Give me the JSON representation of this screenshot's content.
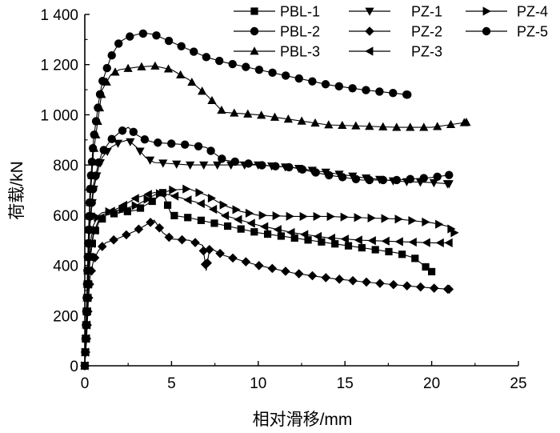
{
  "chart_data": {
    "type": "line",
    "title": "",
    "xlabel": "相对滑移/mm",
    "ylabel": "荷载/kN",
    "xlim": [
      0,
      25
    ],
    "ylim": [
      0,
      1400
    ],
    "xticks": [
      0,
      5,
      10,
      15,
      20,
      25
    ],
    "xtick_labels": [
      "0",
      "5",
      "10",
      "15",
      "20",
      "25"
    ],
    "yticks": [
      0,
      200,
      400,
      600,
      800,
      1000,
      1200,
      1400
    ],
    "ytick_labels": [
      "0",
      "200",
      "400",
      "600",
      "800",
      "1 000",
      "1 200",
      "1 400"
    ],
    "grid": false,
    "legend_position": "top-right",
    "series": [
      {
        "name": "PBL-1",
        "marker": "square",
        "points": [
          [
            0,
            0
          ],
          [
            0.1,
            120
          ],
          [
            0.2,
            300
          ],
          [
            0.3,
            420
          ],
          [
            0.5,
            520
          ],
          [
            0.8,
            570
          ],
          [
            1.2,
            600
          ],
          [
            2,
            610
          ],
          [
            3,
            620
          ],
          [
            3.5,
            640
          ],
          [
            4,
            660
          ],
          [
            4.5,
            690
          ],
          [
            5,
            600
          ],
          [
            6,
            590
          ],
          [
            8,
            560
          ],
          [
            10,
            530
          ],
          [
            12,
            510
          ],
          [
            14,
            490
          ],
          [
            16,
            470
          ],
          [
            18,
            450
          ],
          [
            19,
            430
          ],
          [
            20,
            375
          ]
        ]
      },
      {
        "name": "PBL-2",
        "marker": "circle",
        "points": [
          [
            0,
            0
          ],
          [
            0.1,
            250
          ],
          [
            0.2,
            500
          ],
          [
            0.3,
            700
          ],
          [
            0.5,
            900
          ],
          [
            0.8,
            1050
          ],
          [
            1,
            1130
          ],
          [
            1.5,
            1230
          ],
          [
            2,
            1290
          ],
          [
            2.5,
            1310
          ],
          [
            3,
            1320
          ],
          [
            3.5,
            1325
          ],
          [
            4,
            1320
          ],
          [
            5,
            1290
          ],
          [
            6,
            1260
          ],
          [
            7,
            1230
          ],
          [
            8,
            1210
          ],
          [
            10,
            1180
          ],
          [
            12,
            1150
          ],
          [
            14,
            1120
          ],
          [
            16,
            1100
          ],
          [
            18,
            1085
          ],
          [
            18.6,
            1080
          ]
        ]
      },
      {
        "name": "PBL-3",
        "marker": "triangle-up",
        "points": [
          [
            0,
            0
          ],
          [
            0.1,
            200
          ],
          [
            0.2,
            450
          ],
          [
            0.3,
            650
          ],
          [
            0.5,
            850
          ],
          [
            0.8,
            1000
          ],
          [
            1,
            1100
          ],
          [
            1.5,
            1160
          ],
          [
            2,
            1180
          ],
          [
            3,
            1190
          ],
          [
            4,
            1195
          ],
          [
            5,
            1180
          ],
          [
            6,
            1140
          ],
          [
            7,
            1080
          ],
          [
            8,
            1010
          ],
          [
            10,
            1000
          ],
          [
            12,
            980
          ],
          [
            14,
            960
          ],
          [
            16,
            955
          ],
          [
            18,
            950
          ],
          [
            20,
            950
          ],
          [
            21,
            960
          ],
          [
            22,
            970
          ]
        ]
      },
      {
        "name": "PZ-1",
        "marker": "triangle-down",
        "points": [
          [
            0,
            0
          ],
          [
            0.1,
            200
          ],
          [
            0.2,
            400
          ],
          [
            0.3,
            560
          ],
          [
            0.5,
            700
          ],
          [
            0.8,
            790
          ],
          [
            1,
            830
          ],
          [
            1.5,
            870
          ],
          [
            2,
            890
          ],
          [
            2.5,
            900
          ],
          [
            3,
            870
          ],
          [
            3.5,
            830
          ],
          [
            4,
            810
          ],
          [
            6,
            800
          ],
          [
            8,
            800
          ],
          [
            10,
            800
          ],
          [
            12,
            790
          ],
          [
            14,
            770
          ],
          [
            16,
            750
          ],
          [
            18,
            735
          ],
          [
            20,
            730
          ],
          [
            21,
            725
          ]
        ]
      },
      {
        "name": "PZ-2",
        "marker": "diamond",
        "points": [
          [
            0,
            0
          ],
          [
            0.1,
            100
          ],
          [
            0.2,
            250
          ],
          [
            0.3,
            350
          ],
          [
            0.5,
            420
          ],
          [
            0.8,
            460
          ],
          [
            1.2,
            490
          ],
          [
            2,
            510
          ],
          [
            3,
            540
          ],
          [
            3.5,
            560
          ],
          [
            4,
            580
          ],
          [
            4.5,
            530
          ],
          [
            5,
            505
          ],
          [
            6,
            500
          ],
          [
            6.8,
            480
          ],
          [
            7,
            380
          ],
          [
            7.2,
            470
          ],
          [
            8,
            440
          ],
          [
            10,
            400
          ],
          [
            12,
            370
          ],
          [
            14,
            350
          ],
          [
            16,
            335
          ],
          [
            18,
            322
          ],
          [
            20,
            310
          ],
          [
            21,
            305
          ]
        ]
      },
      {
        "name": "PZ-3",
        "marker": "triangle-left",
        "points": [
          [
            0,
            0
          ],
          [
            0.1,
            150
          ],
          [
            0.2,
            330
          ],
          [
            0.3,
            440
          ],
          [
            0.5,
            530
          ],
          [
            0.8,
            580
          ],
          [
            1,
            600
          ],
          [
            2,
            630
          ],
          [
            3,
            670
          ],
          [
            4,
            690
          ],
          [
            5,
            680
          ],
          [
            6,
            660
          ],
          [
            7,
            640
          ],
          [
            8,
            600
          ],
          [
            10,
            560
          ],
          [
            12,
            530
          ],
          [
            14,
            510
          ],
          [
            16,
            500
          ],
          [
            18,
            495
          ],
          [
            20,
            490
          ],
          [
            21,
            490
          ]
        ]
      },
      {
        "name": "PZ-4",
        "marker": "triangle-right",
        "points": [
          [
            0,
            0
          ],
          [
            0.1,
            150
          ],
          [
            0.2,
            350
          ],
          [
            0.3,
            480
          ],
          [
            0.5,
            560
          ],
          [
            0.8,
            600
          ],
          [
            1,
            610
          ],
          [
            2,
            620
          ],
          [
            3,
            640
          ],
          [
            4,
            680
          ],
          [
            5,
            700
          ],
          [
            6,
            705
          ],
          [
            7,
            680
          ],
          [
            8,
            640
          ],
          [
            9,
            615
          ],
          [
            10,
            600
          ],
          [
            12,
            595
          ],
          [
            14,
            595
          ],
          [
            16,
            590
          ],
          [
            18,
            585
          ],
          [
            20,
            570
          ],
          [
            21,
            555
          ],
          [
            21.3,
            530
          ]
        ]
      },
      {
        "name": "PZ-5",
        "marker": "circle",
        "points": [
          [
            0,
            0
          ],
          [
            0.1,
            200
          ],
          [
            0.2,
            420
          ],
          [
            0.3,
            580
          ],
          [
            0.5,
            720
          ],
          [
            0.8,
            810
          ],
          [
            1,
            850
          ],
          [
            1.5,
            900
          ],
          [
            2,
            930
          ],
          [
            2.5,
            950
          ],
          [
            3,
            920
          ],
          [
            3.5,
            900
          ],
          [
            4,
            890
          ],
          [
            6,
            880
          ],
          [
            7,
            870
          ],
          [
            8,
            820
          ],
          [
            10,
            800
          ],
          [
            12,
            790
          ],
          [
            14,
            760
          ],
          [
            16,
            740
          ],
          [
            18,
            740
          ],
          [
            20,
            750
          ],
          [
            21,
            760
          ]
        ]
      }
    ]
  }
}
